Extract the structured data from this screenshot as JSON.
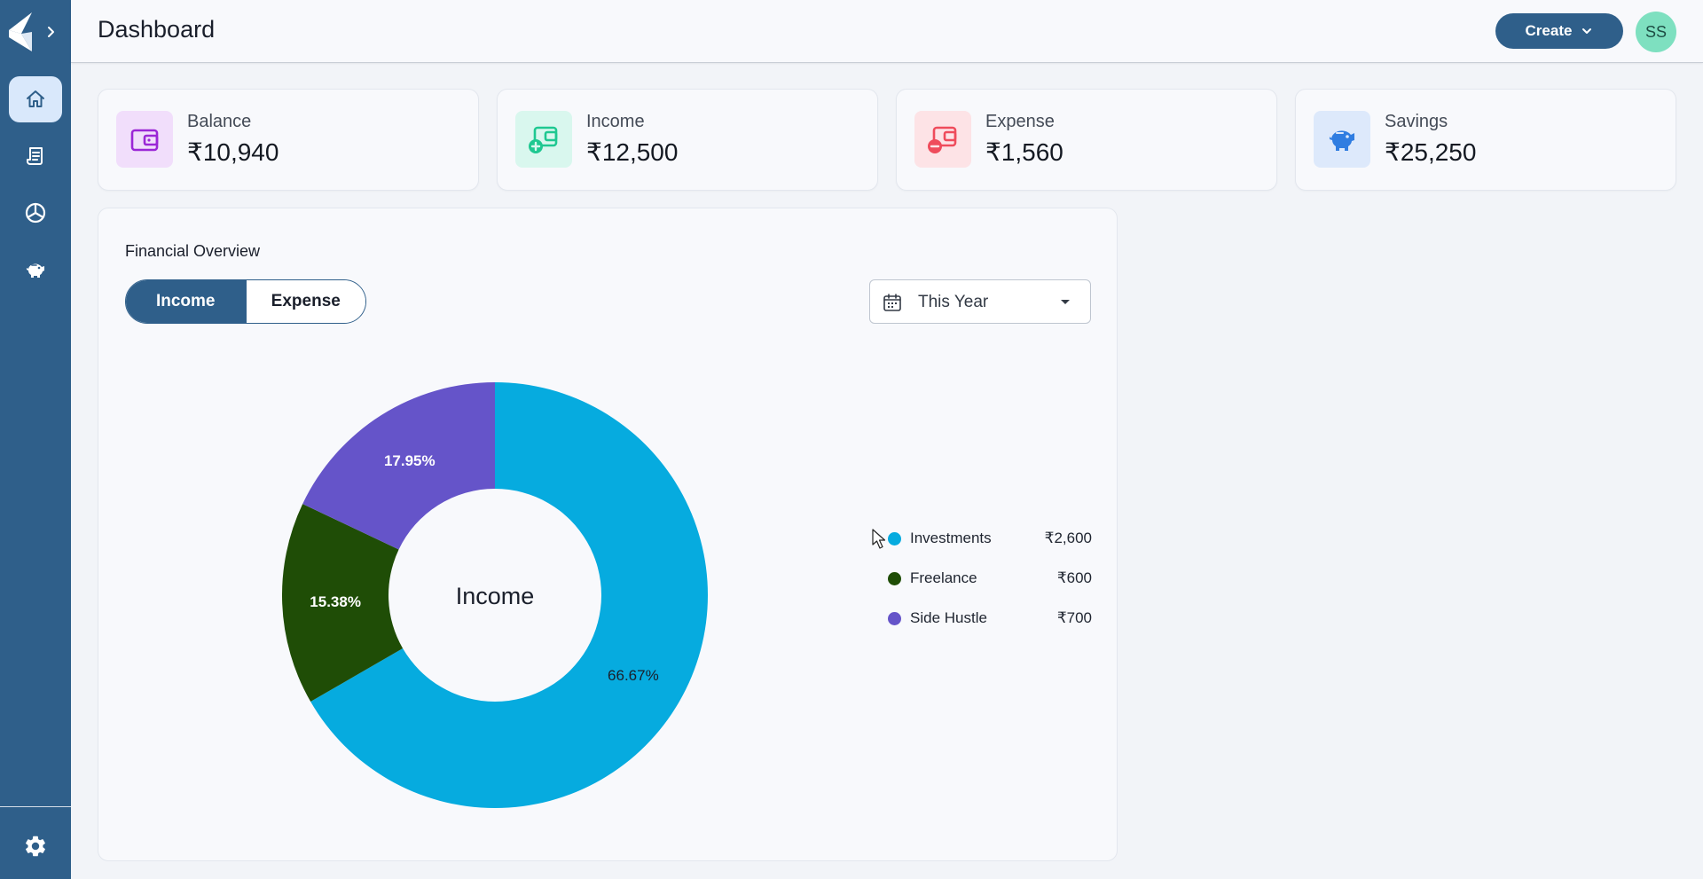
{
  "header": {
    "title": "Dashboard",
    "create_label": "Create",
    "avatar_initials": "SS"
  },
  "sidebar": {
    "items": [
      {
        "name": "home",
        "icon": "home-icon",
        "active": true
      },
      {
        "name": "transactions",
        "icon": "receipt-icon",
        "active": false
      },
      {
        "name": "budget",
        "icon": "pie-chart-icon",
        "active": false
      },
      {
        "name": "savings",
        "icon": "piggy-bank-icon",
        "active": false
      }
    ],
    "settings_icon": "gear-icon"
  },
  "stats": [
    {
      "label": "Balance",
      "value": "₹10,940",
      "icon": "wallet-icon",
      "bg": "#f1defb",
      "color": "#9b27d6"
    },
    {
      "label": "Income",
      "value": "₹12,500",
      "icon": "wallet-add-icon",
      "bg": "#d9f7ee",
      "color": "#1fc891"
    },
    {
      "label": "Expense",
      "value": "₹1,560",
      "icon": "wallet-remove-icon",
      "bg": "#fde3e6",
      "color": "#ef4c5c"
    },
    {
      "label": "Savings",
      "value": "₹25,250",
      "icon": "piggy-bank-icon",
      "bg": "#dde9fb",
      "color": "#2f7de1"
    }
  ],
  "overview": {
    "title": "Financial Overview",
    "tabs": [
      "Income",
      "Expense"
    ],
    "active_tab": "Income",
    "period": "This Year"
  },
  "chart_data": {
    "type": "pie",
    "variant": "donut",
    "center_label": "Income",
    "slices": [
      {
        "name": "Investments",
        "value": 2600,
        "display": "₹2,600",
        "percent": "66.67%",
        "color": "#06abdf"
      },
      {
        "name": "Freelance",
        "value": 600,
        "display": "₹600",
        "percent": "15.38%",
        "color": "#1f4d06"
      },
      {
        "name": "Side Hustle",
        "value": 700,
        "display": "₹700",
        "percent": "17.95%",
        "color": "#6554c9"
      }
    ],
    "legend_position": "right"
  }
}
